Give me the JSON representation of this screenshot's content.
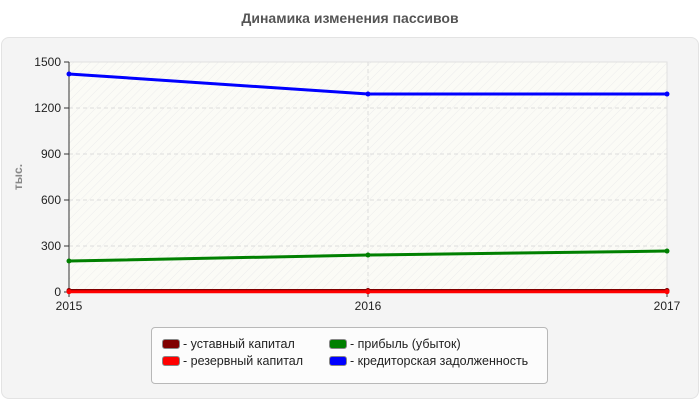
{
  "chart_data": {
    "type": "line",
    "title": "Динамика изменения пассивов",
    "xlabel": "",
    "ylabel": "тыс.",
    "x": [
      "2015",
      "2016",
      "2017"
    ],
    "yticks": [
      "0",
      "300",
      "600",
      "900",
      "1200",
      "1500"
    ],
    "ylim": [
      0,
      1500
    ],
    "grid": true,
    "legend_position": "bottom",
    "series": [
      {
        "name": "уставный капитал",
        "color": "#800000",
        "values": [
          10,
          10,
          10
        ]
      },
      {
        "name": "резервный капитал",
        "color": "#ff0000",
        "values": [
          2,
          2,
          2
        ]
      },
      {
        "name": "прибыль (убыток)",
        "color": "#008000",
        "values": [
          202,
          241,
          267
        ]
      },
      {
        "name": "кредиторская задолженность",
        "color": "#0000ff",
        "values": [
          1422,
          1291,
          1291
        ]
      }
    ]
  },
  "legend": {
    "items": [
      {
        "label": "- уставный капитал",
        "color": "#800000"
      },
      {
        "label": "- резервный капитал",
        "color": "#ff0000"
      },
      {
        "label": "- прибыль (убыток)",
        "color": "#008000"
      },
      {
        "label": "- кредиторская задолженность",
        "color": "#0000ff"
      }
    ]
  }
}
